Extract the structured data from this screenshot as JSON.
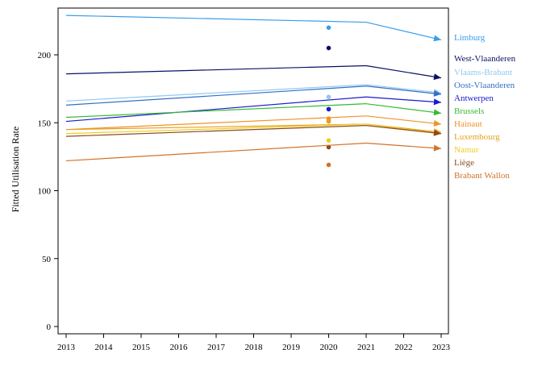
{
  "chart_data": {
    "type": "line",
    "title": "",
    "xlabel": "",
    "ylabel": "Fitted Utilisation Rate",
    "xlim": [
      2013,
      2023
    ],
    "ylim": [
      0,
      230
    ],
    "x_ticks": [
      2013,
      2014,
      2015,
      2016,
      2017,
      2018,
      2019,
      2020,
      2021,
      2022,
      2023
    ],
    "y_ticks": [
      0,
      50,
      100,
      150,
      200
    ],
    "grid": false,
    "legend": "direct labels at right end of each line",
    "series": [
      {
        "name": "Limburg",
        "color": "#3a9de8",
        "x": [
          2013,
          2021,
          2023
        ],
        "values": [
          229,
          224,
          211
        ],
        "point_2020": 220
      },
      {
        "name": "West-Vlaanderen",
        "color": "#0b1066",
        "x": [
          2013,
          2021,
          2023
        ],
        "values": [
          186,
          192,
          183
        ],
        "point_2020": 205
      },
      {
        "name": "Vlaams-Brabant",
        "color": "#90c8f0",
        "x": [
          2013,
          2021,
          2023
        ],
        "values": [
          166,
          178,
          172
        ],
        "point_2020": 169
      },
      {
        "name": "Oost-Vlaanderen",
        "color": "#3170c4",
        "x": [
          2013,
          2021,
          2023
        ],
        "values": [
          163,
          177,
          171
        ],
        "point_2020": 160
      },
      {
        "name": "Antwerpen",
        "color": "#1a1ad0",
        "x": [
          2013,
          2021,
          2023
        ],
        "values": [
          151,
          169,
          165
        ],
        "point_2020": 160
      },
      {
        "name": "Brussels",
        "color": "#33bb33",
        "x": [
          2013,
          2021,
          2023
        ],
        "values": [
          154,
          164,
          157
        ],
        "point_2020": 151
      },
      {
        "name": "Hainaut",
        "color": "#f0922a",
        "x": [
          2013,
          2021,
          2023
        ],
        "values": [
          145,
          155,
          149
        ],
        "point_2020": 153
      },
      {
        "name": "Luxembourg",
        "color": "#e6a020",
        "x": [
          2013,
          2021,
          2023
        ],
        "values": [
          145,
          149,
          143
        ],
        "point_2020": 151
      },
      {
        "name": "Namur",
        "color": "#f0cc20",
        "x": [
          2013,
          2021,
          2023
        ],
        "values": [
          142,
          149,
          142
        ],
        "point_2020": 137
      },
      {
        "name": "Liège",
        "color": "#8a4a1a",
        "x": [
          2013,
          2021,
          2023
        ],
        "values": [
          140,
          148,
          142
        ],
        "point_2020": 132
      },
      {
        "name": "Brabant Wallon",
        "color": "#d2722a",
        "x": [
          2013,
          2021,
          2023
        ],
        "values": [
          122,
          135,
          131
        ],
        "point_2020": 119
      }
    ]
  }
}
